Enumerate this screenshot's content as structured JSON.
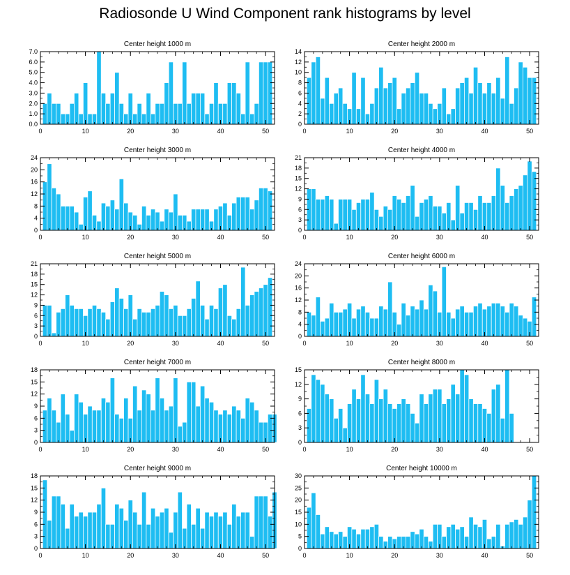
{
  "title": "Radiosonde U Wind Component rank histograms by level",
  "style": {
    "bar_color": "#1ebdf2",
    "bar_edge": "#ffffff",
    "axis_color": "#000000"
  },
  "chart_data": [
    {
      "type": "bar",
      "title": "Center height 1000 m",
      "x_ticks": [
        0,
        10,
        20,
        30,
        40,
        50
      ],
      "xlim": [
        0,
        52
      ],
      "ylim": [
        0,
        7
      ],
      "y_ticks": [
        "0.0",
        "1.0",
        "2.0",
        "3.0",
        "4.0",
        "5.0",
        "6.0",
        "7.0"
      ],
      "y_tick_values": [
        0,
        1,
        2,
        3,
        4,
        5,
        6,
        7
      ],
      "values": [
        2,
        3,
        2,
        2,
        1,
        1,
        2,
        3,
        1,
        4,
        1,
        1,
        7,
        3,
        2,
        3,
        5,
        2,
        1,
        3,
        1,
        2,
        1,
        3,
        1,
        2,
        2,
        4,
        6,
        2,
        2,
        6,
        2,
        3,
        3,
        3,
        1,
        2,
        4,
        2,
        2,
        4,
        4,
        3,
        1,
        6,
        1,
        2,
        6,
        6,
        6
      ]
    },
    {
      "type": "bar",
      "title": "Center height 2000 m",
      "x_ticks": [
        0,
        10,
        20,
        30,
        40,
        50
      ],
      "xlim": [
        0,
        52
      ],
      "ylim": [
        0,
        14
      ],
      "y_ticks": [
        "0",
        "2",
        "4",
        "6",
        "8",
        "10",
        "12",
        "14"
      ],
      "y_tick_values": [
        0,
        2,
        4,
        6,
        8,
        10,
        12,
        14
      ],
      "values": [
        9,
        12,
        13,
        5,
        9,
        4,
        6,
        7,
        4,
        3,
        10,
        3,
        9,
        2,
        4,
        7,
        11,
        7,
        8,
        9,
        3,
        6,
        7,
        8,
        10,
        6,
        6,
        4,
        3,
        4,
        7,
        2,
        3,
        7,
        8,
        9,
        6,
        11,
        8,
        6,
        8,
        6,
        9,
        5,
        13,
        4,
        7,
        12,
        11,
        9,
        9
      ]
    },
    {
      "type": "bar",
      "title": "Center height 3000 m",
      "x_ticks": [
        0,
        10,
        20,
        30,
        40,
        50
      ],
      "xlim": [
        0,
        52
      ],
      "ylim": [
        0,
        24
      ],
      "y_ticks": [
        "0",
        "4",
        "8",
        "12",
        "16",
        "20",
        "24"
      ],
      "y_tick_values": [
        0,
        4,
        8,
        12,
        16,
        20,
        24
      ],
      "values": [
        16,
        22,
        14,
        12,
        8,
        8,
        8,
        6,
        2,
        11,
        13,
        5,
        3,
        9,
        8,
        10,
        7,
        17,
        9,
        6,
        5,
        2,
        8,
        5,
        7,
        6,
        3,
        7,
        6,
        12,
        5,
        5,
        3,
        7,
        7,
        7,
        7,
        3,
        7,
        8,
        9,
        5,
        9,
        11,
        11,
        11,
        7,
        10,
        14,
        14,
        13
      ]
    },
    {
      "type": "bar",
      "title": "Center height 4000 m",
      "x_ticks": [
        0,
        10,
        20,
        30,
        40,
        50
      ],
      "xlim": [
        0,
        52
      ],
      "ylim": [
        0,
        21
      ],
      "y_ticks": [
        "0",
        "3",
        "6",
        "9",
        "12",
        "15",
        "18",
        "21"
      ],
      "y_tick_values": [
        0,
        3,
        6,
        9,
        12,
        15,
        18,
        21
      ],
      "values": [
        12,
        12,
        9,
        9,
        10,
        9,
        2,
        9,
        9,
        9,
        6,
        8,
        9,
        9,
        11,
        6,
        4,
        7,
        6,
        10,
        9,
        8,
        10,
        13,
        4,
        8,
        9,
        10,
        7,
        7,
        5,
        8,
        3,
        13,
        5,
        8,
        8,
        6,
        10,
        8,
        8,
        10,
        18,
        13,
        8,
        10,
        12,
        13,
        16,
        20,
        17
      ]
    },
    {
      "type": "bar",
      "title": "Center height 5000 m",
      "x_ticks": [
        0,
        10,
        20,
        30,
        40,
        50
      ],
      "xlim": [
        0,
        52
      ],
      "ylim": [
        0,
        21
      ],
      "y_ticks": [
        "0",
        "3",
        "6",
        "9",
        "12",
        "15",
        "18",
        "21"
      ],
      "y_tick_values": [
        0,
        3,
        6,
        9,
        12,
        15,
        18,
        21
      ],
      "values": [
        9,
        9,
        1,
        7,
        8,
        12,
        9,
        8,
        8,
        6,
        8,
        9,
        8,
        7,
        5,
        10,
        14,
        11,
        8,
        12,
        5,
        8,
        7,
        7,
        8,
        9,
        13,
        12,
        8,
        9,
        6,
        6,
        8,
        11,
        16,
        9,
        5,
        9,
        8,
        14,
        15,
        6,
        5,
        8,
        20,
        9,
        12,
        13,
        14,
        15,
        17
      ]
    },
    {
      "type": "bar",
      "title": "Center height 6000 m",
      "x_ticks": [
        0,
        10,
        20,
        30,
        40,
        50
      ],
      "xlim": [
        0,
        52
      ],
      "ylim": [
        0,
        24
      ],
      "y_ticks": [
        "0",
        "4",
        "8",
        "12",
        "16",
        "20",
        "24"
      ],
      "y_tick_values": [
        0,
        4,
        8,
        12,
        16,
        20,
        24
      ],
      "values": [
        8,
        7,
        13,
        5,
        6,
        11,
        8,
        8,
        9,
        11,
        6,
        9,
        10,
        8,
        6,
        6,
        10,
        9,
        18,
        8,
        4,
        11,
        7,
        10,
        9,
        12,
        9,
        17,
        15,
        8,
        23,
        8,
        6,
        9,
        10,
        8,
        8,
        10,
        11,
        9,
        10,
        11,
        11,
        10,
        8,
        11,
        10,
        7,
        6,
        5,
        13
      ]
    },
    {
      "type": "bar",
      "title": "Center height 7000 m",
      "x_ticks": [
        0,
        10,
        20,
        30,
        40,
        50
      ],
      "xlim": [
        0,
        52
      ],
      "ylim": [
        0,
        18
      ],
      "y_ticks": [
        "0",
        "3",
        "6",
        "9",
        "12",
        "15",
        "18"
      ],
      "y_tick_values": [
        0,
        3,
        6,
        9,
        12,
        15,
        18
      ],
      "values": [
        8,
        11,
        8,
        5,
        12,
        7,
        3,
        12,
        10,
        7,
        9,
        8,
        8,
        11,
        10,
        16,
        7,
        6,
        11,
        6,
        14,
        8,
        13,
        12,
        8,
        16,
        11,
        8,
        9,
        16,
        4,
        5,
        15,
        15,
        9,
        14,
        11,
        10,
        8,
        7,
        8,
        7,
        9,
        8,
        6,
        11,
        10,
        8,
        5,
        5,
        7,
        7
      ]
    },
    {
      "type": "bar",
      "title": "Center height 8000 m",
      "x_ticks": [
        0,
        10,
        20,
        30,
        40,
        50
      ],
      "xlim": [
        0,
        52
      ],
      "ylim": [
        0,
        15
      ],
      "y_ticks": [
        "0",
        "3",
        "6",
        "9",
        "12",
        "15"
      ],
      "y_tick_values": [
        0,
        3,
        6,
        9,
        12,
        15
      ],
      "values": [
        7,
        14,
        13,
        12,
        10,
        9,
        5,
        7,
        3,
        8,
        11,
        9,
        14,
        10,
        8,
        13,
        9,
        11,
        8,
        7,
        8,
        9,
        8,
        6,
        4,
        10,
        8,
        10,
        11,
        11,
        8,
        9,
        12,
        10,
        15,
        14,
        9,
        8,
        8,
        7,
        6,
        11,
        12,
        5,
        15,
        6
      ]
    },
    {
      "type": "bar",
      "title": "Center height 9000 m",
      "x_ticks": [
        0,
        10,
        20,
        30,
        40,
        50
      ],
      "xlim": [
        0,
        52
      ],
      "ylim": [
        0,
        18
      ],
      "y_ticks": [
        "0",
        "3",
        "6",
        "9",
        "12",
        "15",
        "18"
      ],
      "y_tick_values": [
        0,
        3,
        6,
        9,
        12,
        15,
        18
      ],
      "values": [
        17,
        7,
        13,
        13,
        11,
        5,
        11,
        8,
        9,
        8,
        9,
        9,
        11,
        15,
        6,
        6,
        11,
        10,
        7,
        12,
        9,
        6,
        14,
        6,
        10,
        8,
        9,
        10,
        4,
        9,
        14,
        5,
        11,
        6,
        10,
        5,
        9,
        8,
        9,
        8,
        9,
        6,
        11,
        8,
        9,
        9,
        3,
        13,
        13,
        13,
        8,
        14
      ]
    },
    {
      "type": "bar",
      "title": "Center height 10000 m",
      "x_ticks": [
        0,
        10,
        20,
        30,
        40,
        50
      ],
      "xlim": [
        0,
        52
      ],
      "ylim": [
        0,
        30
      ],
      "y_ticks": [
        "0",
        "5",
        "10",
        "15",
        "20",
        "25",
        "30"
      ],
      "y_tick_values": [
        0,
        5,
        10,
        15,
        20,
        25,
        30
      ],
      "values": [
        17,
        23,
        14,
        6,
        9,
        7,
        6,
        7,
        5,
        9,
        8,
        6,
        8,
        8,
        9,
        10,
        5,
        3,
        5,
        4,
        5,
        5,
        5,
        7,
        6,
        8,
        5,
        3,
        10,
        10,
        5,
        9,
        10,
        8,
        9,
        5,
        13,
        10,
        9,
        12,
        4,
        5,
        10,
        1,
        10,
        11,
        12,
        10,
        13,
        20,
        30
      ]
    }
  ]
}
